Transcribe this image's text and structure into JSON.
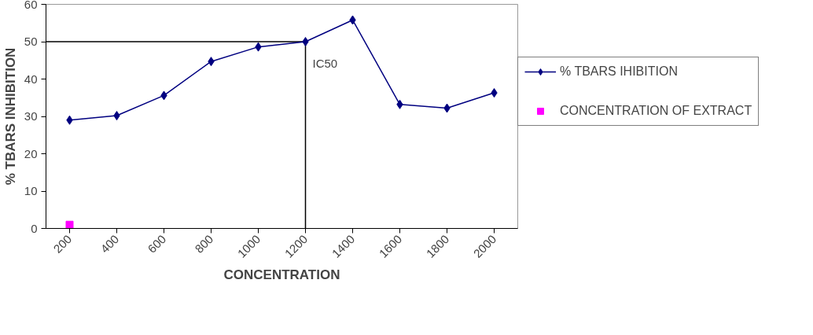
{
  "chart_data": {
    "type": "line",
    "xlabel": "CONCENTRATION",
    "ylabel": "% TBARS INHIBITION",
    "categories": [
      "200",
      "400",
      "600",
      "800",
      "1000",
      "1200",
      "1400",
      "1600",
      "1800",
      "2000"
    ],
    "series": [
      {
        "name": "% TBARS IHIBITION",
        "color": "#000080",
        "marker": "diamond",
        "values": [
          29.0,
          30.2,
          35.6,
          44.7,
          48.6,
          50,
          55.8,
          33.2,
          32.2,
          36.3
        ]
      },
      {
        "name": "CONCENTRATION OF EXTRACT",
        "type": "scatter",
        "color": "#ff00ff",
        "marker": "square",
        "values": [
          1,
          null,
          null,
          null,
          null,
          null,
          null,
          null,
          null,
          null
        ]
      }
    ],
    "ylim": [
      0,
      60
    ],
    "yticks": [
      0,
      10,
      20,
      30,
      40,
      50,
      60
    ],
    "ref_lines": [
      {
        "axis": "x",
        "value": "1200",
        "label": "IC50",
        "color": "#000000"
      },
      {
        "axis": "y",
        "value": 50,
        "color": "#000000"
      }
    ],
    "grid": false,
    "legend": "right"
  }
}
